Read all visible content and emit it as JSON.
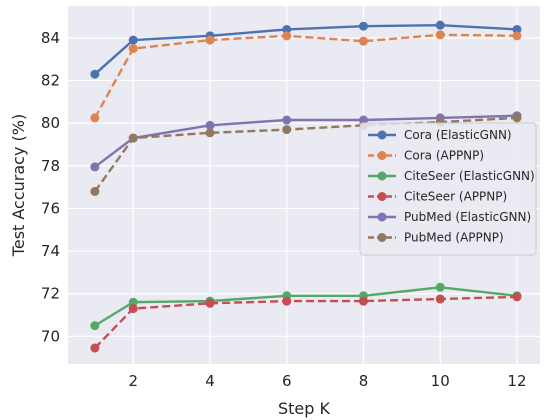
{
  "chart_data": {
    "type": "line",
    "xlabel": "Step K",
    "ylabel": "Test Accuracy (%)",
    "x": [
      1,
      2,
      4,
      6,
      8,
      10,
      12
    ],
    "xticks": [
      2,
      4,
      6,
      8,
      10,
      12
    ],
    "yticks": [
      70,
      72,
      74,
      76,
      78,
      80,
      82,
      84
    ],
    "xlim": [
      0.3,
      12.6
    ],
    "ylim": [
      68.7,
      85.5
    ],
    "grid": true,
    "legend_position": "center-right",
    "series": [
      {
        "name": "Cora (ElasticGNN)",
        "values": [
          82.3,
          83.9,
          84.1,
          84.4,
          84.55,
          84.6,
          84.4
        ],
        "color": "#4c72b0",
        "dash": "solid"
      },
      {
        "name": "Cora (APPNP)",
        "values": [
          80.25,
          83.5,
          83.9,
          84.1,
          83.85,
          84.15,
          84.1
        ],
        "color": "#dd8452",
        "dash": "dashed"
      },
      {
        "name": "CiteSeer (ElasticGNN)",
        "values": [
          70.5,
          71.6,
          71.65,
          71.9,
          71.9,
          72.3,
          71.9
        ],
        "color": "#55a868",
        "dash": "solid"
      },
      {
        "name": "CiteSeer (APPNP)",
        "values": [
          69.45,
          71.3,
          71.55,
          71.65,
          71.65,
          71.75,
          71.85
        ],
        "color": "#c44e52",
        "dash": "dashed"
      },
      {
        "name": "PubMed (ElasticGNN)",
        "values": [
          77.95,
          79.3,
          79.9,
          80.15,
          80.15,
          80.25,
          80.35
        ],
        "color": "#8172b3",
        "dash": "solid"
      },
      {
        "name": "PubMed (APPNP)",
        "values": [
          76.8,
          79.3,
          79.55,
          79.7,
          79.9,
          80.05,
          80.25
        ],
        "color": "#937860",
        "dash": "dashed"
      }
    ]
  }
}
